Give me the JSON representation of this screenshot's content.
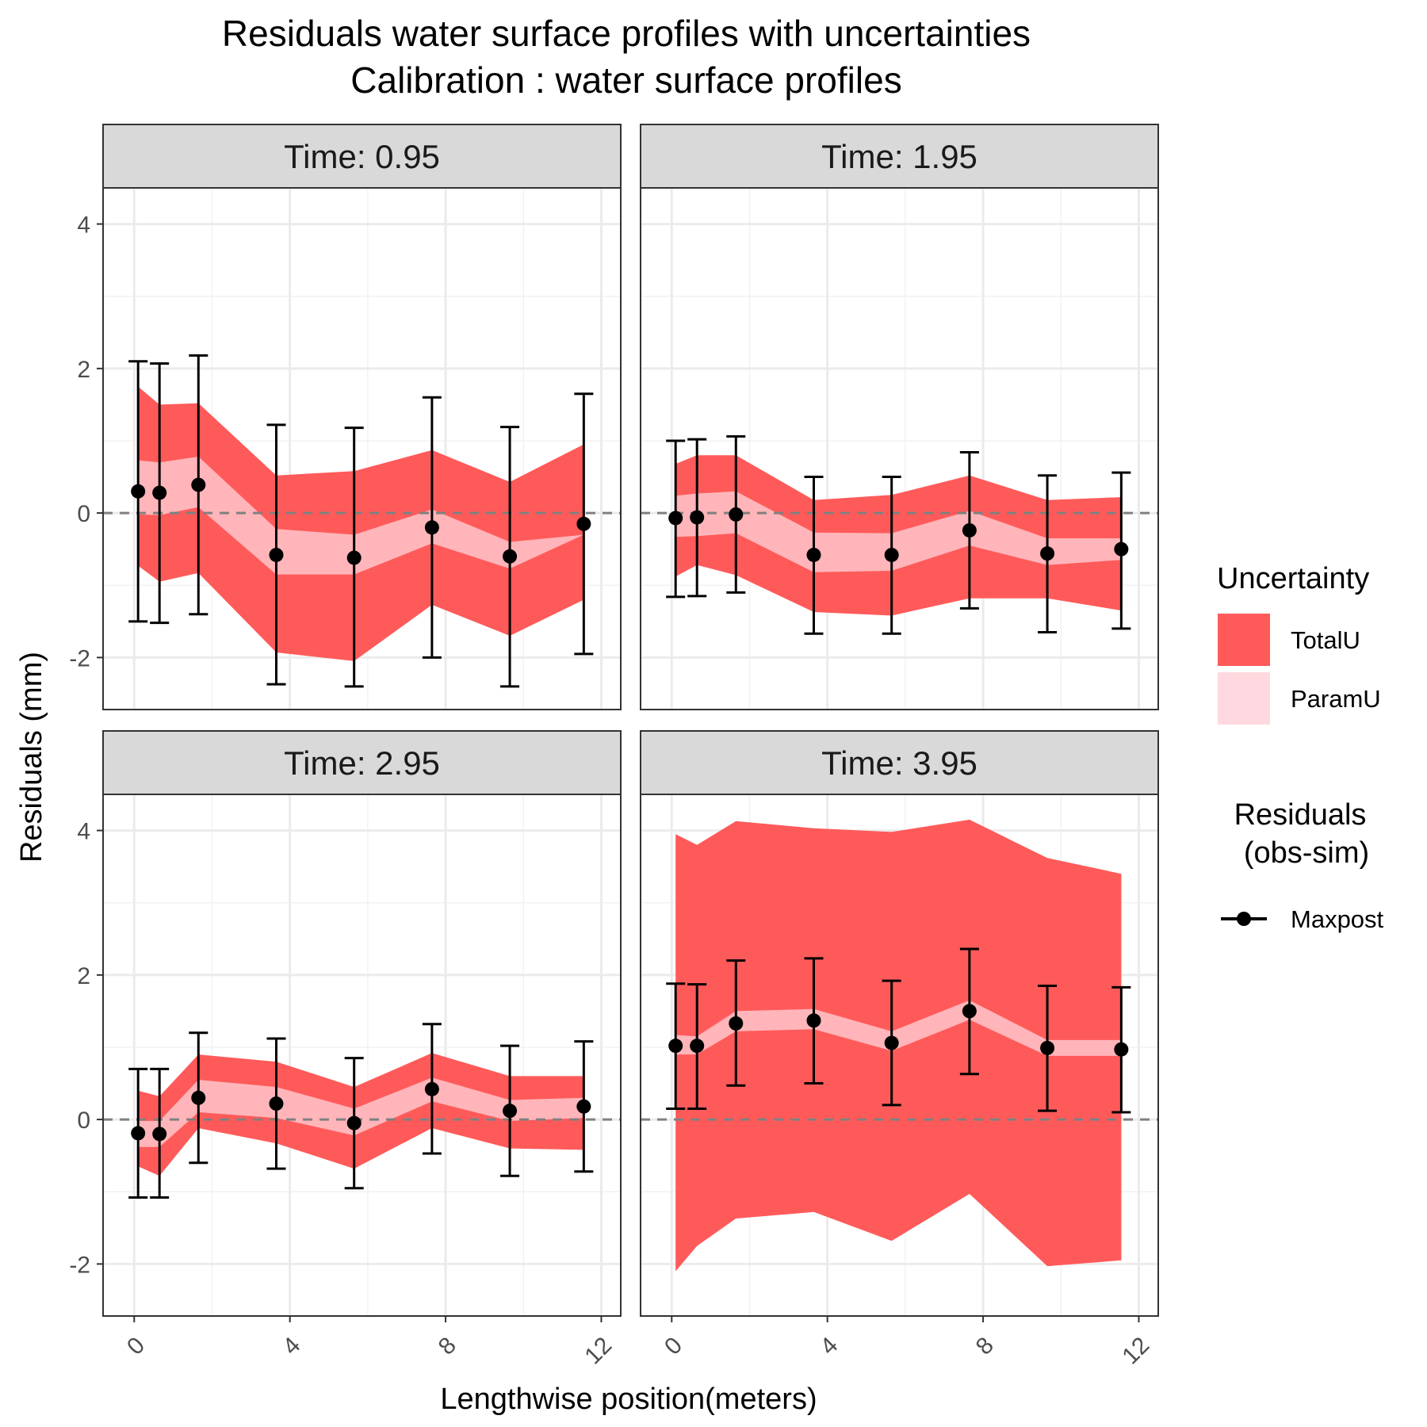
{
  "title_line1": "Residuals water surface profiles with uncertainties",
  "title_line2": "Calibration : water surface profiles",
  "xlabel": "Lengthwise position(meters)",
  "ylabel": "Residuals (mm)",
  "legend": {
    "uncertainty_title": "Uncertainty",
    "totalu_label": "TotalU",
    "paramu_label": "ParamU",
    "residuals_title_line1": "Residuals",
    "residuals_title_line2": "(obs-sim)",
    "maxpost_label": "Maxpost"
  },
  "colors": {
    "totalu": "#ff5a5a",
    "paramu": "#ffb5b9",
    "paramu_legend": "#ffd9df",
    "points": "#000000",
    "zero_line": "#808080",
    "strip_bg": "#d9d9d9",
    "grid": "#ebebeb"
  },
  "chart_data": {
    "type": "line",
    "panels": [
      {
        "strip": "Time:  0.95",
        "x": [
          0.1,
          0.65,
          1.65,
          3.65,
          5.65,
          7.65,
          9.65,
          11.55
        ],
        "maxpost": [
          0.3,
          0.28,
          0.39,
          -0.58,
          -0.62,
          -0.2,
          -0.6,
          -0.15
        ],
        "totalu_upper": [
          1.75,
          1.5,
          1.52,
          0.52,
          0.58,
          0.87,
          0.43,
          0.95
        ],
        "totalu_lower": [
          -0.73,
          -0.95,
          -0.83,
          -1.93,
          -2.05,
          -1.27,
          -1.7,
          -1.2
        ],
        "paramu_upper": [
          0.73,
          0.7,
          0.78,
          -0.22,
          -0.3,
          0.05,
          -0.4,
          -0.3
        ],
        "paramu_lower": [
          -0.02,
          -0.03,
          0.08,
          -0.85,
          -0.85,
          -0.42,
          -0.77,
          -0.3
        ],
        "err_upper": [
          2.1,
          2.07,
          2.18,
          1.22,
          1.18,
          1.6,
          1.19,
          1.65
        ],
        "err_lower": [
          -1.5,
          -1.52,
          -1.4,
          -2.37,
          -2.4,
          -2.0,
          -2.4,
          -1.95
        ]
      },
      {
        "strip": "Time:  1.95",
        "x": [
          0.1,
          0.65,
          1.65,
          3.65,
          5.65,
          7.65,
          9.65,
          11.55
        ],
        "maxpost": [
          -0.07,
          -0.06,
          -0.02,
          -0.58,
          -0.58,
          -0.24,
          -0.56,
          -0.5
        ],
        "totalu_upper": [
          0.68,
          0.8,
          0.8,
          0.18,
          0.25,
          0.52,
          0.18,
          0.22
        ],
        "totalu_lower": [
          -0.88,
          -0.72,
          -0.86,
          -1.37,
          -1.42,
          -1.18,
          -1.18,
          -1.35
        ],
        "paramu_upper": [
          0.24,
          0.27,
          0.3,
          -0.27,
          -0.28,
          0.03,
          -0.35,
          -0.35
        ],
        "paramu_lower": [
          -0.33,
          -0.32,
          -0.28,
          -0.82,
          -0.8,
          -0.45,
          -0.72,
          -0.65
        ],
        "err_upper": [
          1.0,
          1.02,
          1.06,
          0.5,
          0.5,
          0.84,
          0.52,
          0.56
        ],
        "err_lower": [
          -1.16,
          -1.15,
          -1.1,
          -1.67,
          -1.67,
          -1.32,
          -1.65,
          -1.6
        ]
      },
      {
        "strip": "Time:  2.95",
        "x": [
          0.1,
          0.65,
          1.65,
          3.65,
          5.65,
          7.65,
          9.65,
          11.55
        ],
        "maxpost": [
          -0.19,
          -0.2,
          0.3,
          0.22,
          -0.05,
          0.42,
          0.12,
          0.18
        ],
        "totalu_upper": [
          0.4,
          0.32,
          0.9,
          0.8,
          0.45,
          0.92,
          0.6,
          0.6
        ],
        "totalu_lower": [
          -0.65,
          -0.78,
          -0.12,
          -0.33,
          -0.68,
          -0.12,
          -0.4,
          -0.42
        ],
        "paramu_upper": [
          -0.02,
          -0.02,
          0.55,
          0.45,
          0.15,
          0.58,
          0.27,
          0.3
        ],
        "paramu_lower": [
          -0.38,
          -0.38,
          0.1,
          0.02,
          -0.22,
          0.25,
          -0.02,
          0.02
        ],
        "err_upper": [
          0.7,
          0.7,
          1.2,
          1.12,
          0.85,
          1.32,
          1.02,
          1.08
        ],
        "err_lower": [
          -1.08,
          -1.08,
          -0.6,
          -0.68,
          -0.95,
          -0.47,
          -0.78,
          -0.72
        ]
      },
      {
        "strip": "Time:  3.95",
        "x": [
          0.1,
          0.65,
          1.65,
          3.65,
          5.65,
          7.65,
          9.65,
          11.55
        ],
        "maxpost": [
          1.02,
          1.02,
          1.33,
          1.37,
          1.06,
          1.5,
          0.99,
          0.97
        ],
        "totalu_upper": [
          3.95,
          3.8,
          4.13,
          4.03,
          3.98,
          4.15,
          3.62,
          3.4
        ],
        "totalu_lower": [
          -2.1,
          -1.75,
          -1.37,
          -1.28,
          -1.68,
          -1.03,
          -2.03,
          -1.95
        ],
        "paramu_upper": [
          1.17,
          1.15,
          1.5,
          1.53,
          1.22,
          1.65,
          1.1,
          1.1
        ],
        "paramu_lower": [
          0.9,
          0.9,
          1.22,
          1.25,
          0.95,
          1.38,
          0.88,
          0.88
        ],
        "err_upper": [
          1.88,
          1.87,
          2.2,
          2.23,
          1.92,
          2.36,
          1.85,
          1.83
        ],
        "err_lower": [
          0.15,
          0.15,
          0.47,
          0.5,
          0.2,
          0.63,
          0.12,
          0.1
        ]
      }
    ],
    "xlim": [
      -0.8,
      12.5
    ],
    "ylim": [
      -2.72,
      4.5
    ],
    "xticks": [
      0,
      4,
      8,
      12
    ],
    "xtick_labels": [
      "0",
      "4",
      "8",
      "12"
    ],
    "yticks": [
      -2,
      0,
      2,
      4
    ],
    "ytick_labels": [
      "-2",
      "0",
      "2",
      "4"
    ],
    "zero_reference": 0,
    "grid": true
  }
}
